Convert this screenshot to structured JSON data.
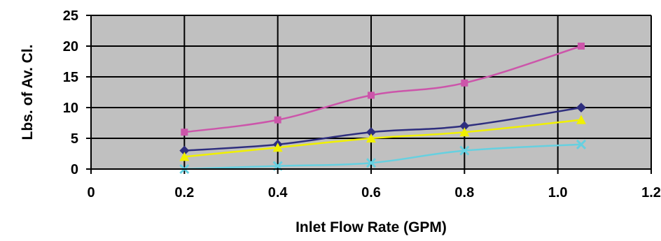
{
  "chart_data": {
    "type": "line",
    "title": "",
    "xlabel": "Inlet Flow Rate (GPM)",
    "ylabel": "Lbs. of Av. Cl.",
    "xlim": [
      0,
      1.2
    ],
    "ylim": [
      0,
      25
    ],
    "x_ticks": [
      0,
      0.2,
      0.4,
      0.6,
      0.8,
      1.0,
      1.2
    ],
    "x_tick_labels": [
      "0",
      "0.2",
      "0.4",
      "0.6",
      "0.8",
      "1.0",
      "1.2"
    ],
    "y_ticks": [
      0,
      5,
      10,
      15,
      20,
      25
    ],
    "y_tick_labels": [
      "0",
      "5",
      "10",
      "15",
      "20",
      "25"
    ],
    "grid": true,
    "legend": "none",
    "plot_background": "#c0c0c0",
    "x": [
      0.2,
      0.4,
      0.6,
      0.8,
      1.05
    ],
    "series": [
      {
        "values": [
          6,
          8,
          12,
          14,
          20
        ],
        "color": "#cc55aa",
        "marker": "square"
      },
      {
        "values": [
          3,
          4,
          6,
          7,
          10
        ],
        "color": "#2e2e7e",
        "marker": "diamond"
      },
      {
        "values": [
          2,
          3.5,
          5,
          6,
          8
        ],
        "color": "#f0f000",
        "marker": "triangle"
      },
      {
        "values": [
          0,
          0.5,
          1,
          3,
          4
        ],
        "color": "#66d0e0",
        "marker": "x"
      }
    ]
  }
}
